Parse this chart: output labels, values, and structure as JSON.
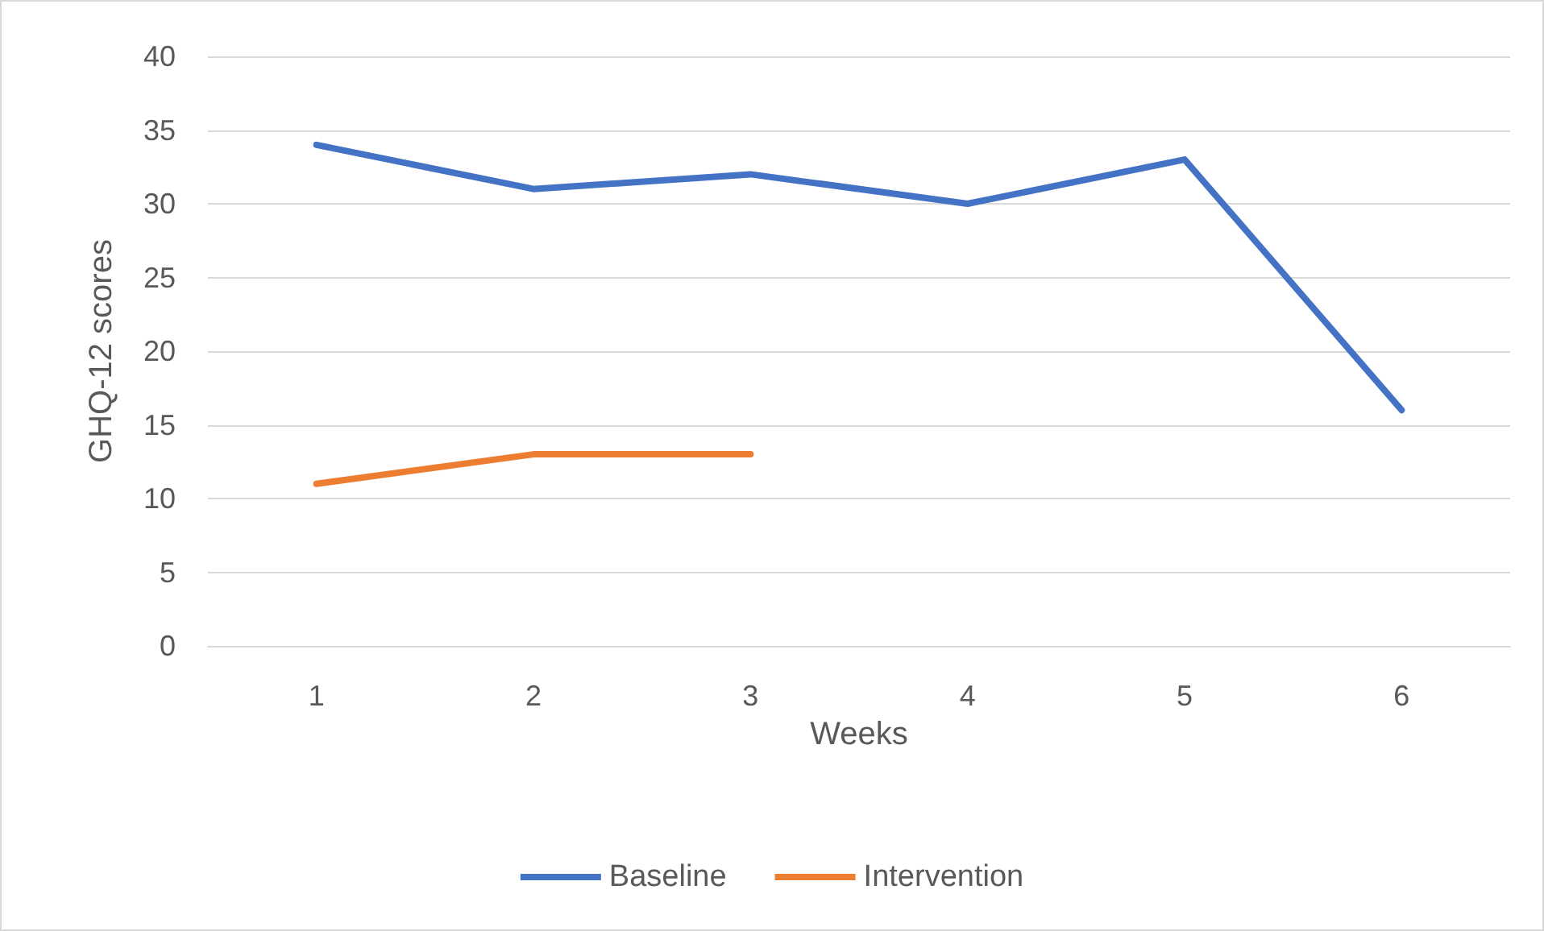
{
  "chart_data": {
    "type": "line",
    "xlabel": "Weeks",
    "ylabel": "GHQ-12 scores",
    "categories": [
      "1",
      "2",
      "3",
      "4",
      "5",
      "6"
    ],
    "series": [
      {
        "name": "Baseline",
        "color": "#4472c4",
        "values": [
          34,
          31,
          32,
          30,
          33,
          16
        ]
      },
      {
        "name": "Intervention",
        "color": "#ed7d31",
        "values": [
          11,
          13,
          13,
          null,
          null,
          null
        ]
      }
    ],
    "ylim": [
      0,
      40
    ],
    "yticks": [
      0,
      5,
      10,
      15,
      20,
      25,
      30,
      35,
      40
    ],
    "grid": "y",
    "legend": "bottom",
    "marker": "none",
    "line_style": "solid"
  }
}
